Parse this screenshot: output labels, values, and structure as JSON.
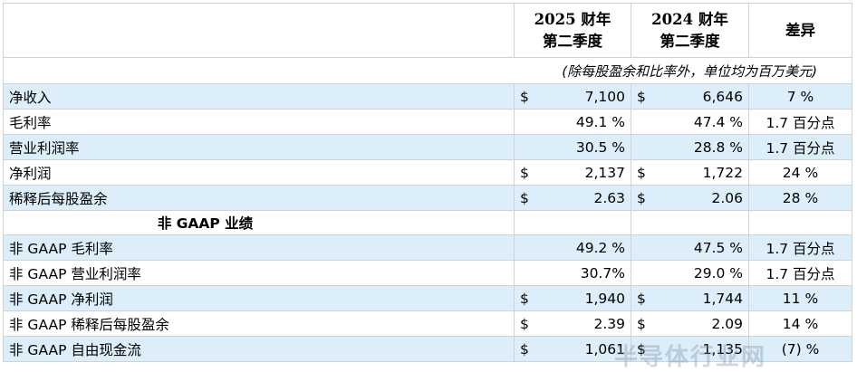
{
  "header": {
    "col2025_line1": "2025 财年",
    "col2025_line2": "第二季度",
    "col2024_line1": "2024 财年",
    "col2024_line2": "第二季度",
    "col_diff": "差异"
  },
  "unit_note": "(除每股盈余和比率外，单位均为百万美元)",
  "section_title": "非 GAAP 业绩",
  "rows": [
    {
      "label": "净收入",
      "v2025_cur": "$",
      "v2025": "7,100",
      "v2024_cur": "$",
      "v2024": "6,646",
      "diff": "7 %"
    },
    {
      "label": "毛利率",
      "v2025_cur": "",
      "v2025": "49.1 %",
      "v2024_cur": "",
      "v2024": "47.4 %",
      "diff": "1.7 百分点"
    },
    {
      "label": "营业利润率",
      "v2025_cur": "",
      "v2025": "30.5 %",
      "v2024_cur": "",
      "v2024": "28.8 %",
      "diff": "1.7 百分点"
    },
    {
      "label": "净利润",
      "v2025_cur": "$",
      "v2025": "2,137",
      "v2024_cur": "$",
      "v2024": "1,722",
      "diff": "24 %"
    },
    {
      "label": "稀释后每股盈余",
      "v2025_cur": "$",
      "v2025": "2.63",
      "v2024_cur": "$",
      "v2024": "2.06",
      "diff": "28 %"
    }
  ],
  "nongaap_rows": [
    {
      "label": "非 GAAP 毛利率",
      "v2025_cur": "",
      "v2025": "49.2 %",
      "v2024_cur": "",
      "v2024": "47.5 %",
      "diff": "1.7 百分点"
    },
    {
      "label": "非 GAAP 营业利润率",
      "v2025_cur": "",
      "v2025": "30.7%",
      "v2024_cur": "",
      "v2024": "29.0 %",
      "diff": "1.7 百分点"
    },
    {
      "label": "非 GAAP 净利润",
      "v2025_cur": "$",
      "v2025": "1,940",
      "v2024_cur": "$",
      "v2024": "1,744",
      "diff": "11 %"
    },
    {
      "label": "非 GAAP 稀释后每股盈余",
      "v2025_cur": "$",
      "v2025": "2.39",
      "v2024_cur": "$",
      "v2024": "2.09",
      "diff": "14 %"
    },
    {
      "label": "非 GAAP 自由现金流",
      "v2025_cur": "$",
      "v2025": "1,061",
      "v2024_cur": "$",
      "v2024": "1,135",
      "diff": "(7) %"
    }
  ],
  "watermark": "半导体行业网",
  "colors": {
    "shade": "#dbeef9",
    "border": "#d2d2d2"
  }
}
